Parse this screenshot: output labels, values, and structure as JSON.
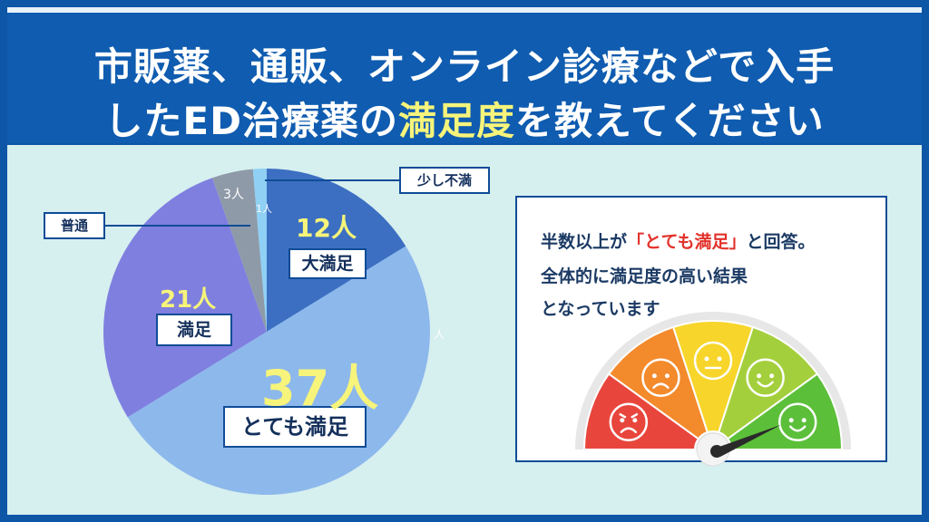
{
  "title": {
    "line1": "市販薬、通販、オンライン診療などで入手",
    "line2_pre": "したED治療薬の",
    "line2_highlight": "満足度",
    "line2_post": "を教えてください"
  },
  "colors": {
    "background": "#0e56a6",
    "panel": "#d6efef",
    "highlight": "#f6f47a",
    "label_border": "#0f4c96"
  },
  "chart_data": {
    "type": "pie",
    "start": "12 o'clock, clockwise",
    "slices": [
      {
        "label": "大満足",
        "value": 12,
        "count_text": "12人",
        "color": "#3c6fc2",
        "count_color": "#f6f47a"
      },
      {
        "label": "とても満足",
        "value": 37,
        "count_text": "37人",
        "color": "#8db8ec",
        "count_color": "#f6f47a"
      },
      {
        "label": "満足",
        "value": 21,
        "count_text": "21人",
        "color": "#7f7fe0",
        "count_color": "#f6f47a"
      },
      {
        "label": "普通",
        "value": 3,
        "count_text": "3人",
        "color": "#8f9aa8",
        "count_color": "#ffffff"
      },
      {
        "label": "少し不満",
        "value": 1,
        "count_text": "1人",
        "color": "#8fd0f4",
        "count_color": "#ffffff"
      }
    ],
    "stray_text": "人"
  },
  "note": {
    "line1_pre": "半数以上が",
    "line1_red": "「とても満足」",
    "line1_post": "と回答。",
    "line2": "全体的に満足度の高い結果",
    "line3": "となっています"
  },
  "gauge": {
    "segments": [
      "#e8463c",
      "#f38a2c",
      "#f7d52a",
      "#a4cf3c",
      "#5cbf3a"
    ],
    "faces": [
      "angry-face-icon",
      "sad-face-icon",
      "neutral-face-icon",
      "smile-face-icon",
      "happy-face-icon"
    ],
    "needle_level": 0.9
  }
}
